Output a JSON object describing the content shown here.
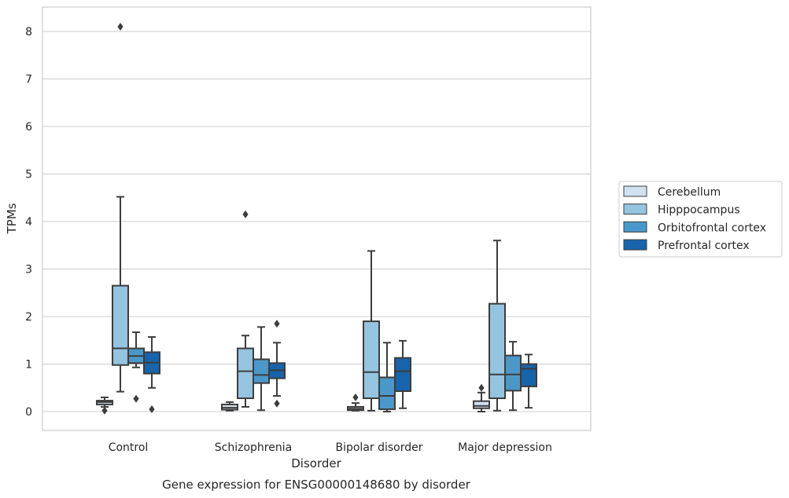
{
  "chart_data": {
    "type": "box",
    "xlabel": "Disorder",
    "ylabel": "TPMs",
    "caption": "Gene expression for ENSG00000148680 by disorder",
    "ylim": [
      -0.4,
      8.5
    ],
    "yticks": [
      0,
      1,
      2,
      3,
      4,
      5,
      6,
      7,
      8
    ],
    "grid": "horizontal",
    "legend_position": "right",
    "categories": [
      "Control",
      "Schizophrenia",
      "Bipolar disorder",
      "Major depression"
    ],
    "series": [
      {
        "name": "Cerebellum",
        "color": "#d0e1f2",
        "boxes": [
          {
            "whisker_low": 0.1,
            "q1": 0.15,
            "median": 0.2,
            "q3": 0.23,
            "whisker_high": 0.3,
            "outliers": [
              0.02
            ]
          },
          {
            "whisker_low": 0.02,
            "q1": 0.04,
            "median": 0.08,
            "q3": 0.15,
            "whisker_high": 0.2,
            "outliers": []
          },
          {
            "whisker_low": 0.02,
            "q1": 0.03,
            "median": 0.06,
            "q3": 0.1,
            "whisker_high": 0.18,
            "outliers": [
              0.3
            ]
          },
          {
            "whisker_low": 0.0,
            "q1": 0.07,
            "median": 0.12,
            "q3": 0.22,
            "whisker_high": 0.4,
            "outliers": [
              0.5
            ]
          }
        ]
      },
      {
        "name": "Hipppocampus",
        "color": "#94c4df",
        "boxes": [
          {
            "whisker_low": 0.42,
            "q1": 0.98,
            "median": 1.33,
            "q3": 2.65,
            "whisker_high": 4.52,
            "outliers": [
              8.1
            ]
          },
          {
            "whisker_low": 0.1,
            "q1": 0.28,
            "median": 0.85,
            "q3": 1.33,
            "whisker_high": 1.6,
            "outliers": [
              4.15
            ]
          },
          {
            "whisker_low": 0.02,
            "q1": 0.28,
            "median": 0.83,
            "q3": 1.9,
            "whisker_high": 3.38,
            "outliers": []
          },
          {
            "whisker_low": 0.02,
            "q1": 0.28,
            "median": 0.78,
            "q3": 2.27,
            "whisker_high": 3.6,
            "outliers": []
          }
        ]
      },
      {
        "name": "Orbitofrontal cortex",
        "color": "#4a98c9",
        "boxes": [
          {
            "whisker_low": 0.93,
            "q1": 1.02,
            "median": 1.17,
            "q3": 1.33,
            "whisker_high": 1.67,
            "outliers": [
              0.27
            ]
          },
          {
            "whisker_low": 0.03,
            "q1": 0.6,
            "median": 0.77,
            "q3": 1.1,
            "whisker_high": 1.78,
            "outliers": []
          },
          {
            "whisker_low": 0.0,
            "q1": 0.05,
            "median": 0.33,
            "q3": 0.72,
            "whisker_high": 1.45,
            "outliers": []
          },
          {
            "whisker_low": 0.03,
            "q1": 0.44,
            "median": 0.78,
            "q3": 1.18,
            "whisker_high": 1.47,
            "outliers": []
          }
        ]
      },
      {
        "name": "Prefrontal cortex",
        "color": "#1764ab",
        "boxes": [
          {
            "whisker_low": 0.5,
            "q1": 0.8,
            "median": 1.03,
            "q3": 1.25,
            "whisker_high": 1.57,
            "outliers": [
              0.05
            ]
          },
          {
            "whisker_low": 0.33,
            "q1": 0.7,
            "median": 0.87,
            "q3": 1.02,
            "whisker_high": 1.45,
            "outliers": [
              1.85,
              0.17
            ]
          },
          {
            "whisker_low": 0.07,
            "q1": 0.43,
            "median": 0.85,
            "q3": 1.13,
            "whisker_high": 1.49,
            "outliers": []
          },
          {
            "whisker_low": 0.08,
            "q1": 0.53,
            "median": 0.9,
            "q3": 1.0,
            "whisker_high": 1.2,
            "outliers": []
          }
        ]
      }
    ]
  }
}
